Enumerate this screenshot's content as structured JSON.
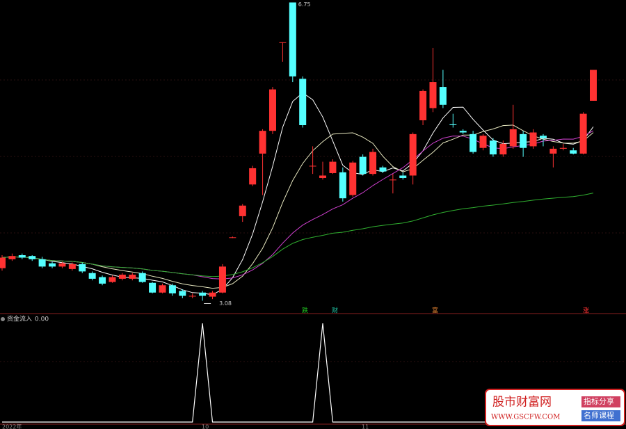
{
  "chart_data": {
    "type": "candlestick",
    "ylim": [
      2.93,
      6.78
    ],
    "open": [
      3.48,
      3.59,
      3.64,
      3.63,
      3.59,
      3.54,
      3.5,
      3.47,
      3.53,
      3.42,
      3.37,
      3.31,
      3.35,
      3.35,
      3.42,
      3.3,
      3.18,
      3.27,
      3.2,
      3.14,
      3.18,
      3.13,
      3.18,
      3.86,
      4.12,
      4.51,
      4.89,
      5.17,
      6.26,
      6.75,
      5.81,
      4.74,
      4.59,
      4.65,
      4.66,
      4.38,
      4.85,
      4.64,
      4.72,
      4.57,
      4.62,
      4.62,
      5.3,
      5.45,
      5.71,
      5.25,
      5.17,
      5.13,
      4.96,
      5.05,
      4.88,
      4.98,
      5.13,
      4.98,
      5.11,
      4.89,
      4.95,
      4.93,
      4.89,
      5.54
    ],
    "high": [
      3.64,
      3.66,
      3.66,
      3.64,
      3.62,
      3.56,
      3.56,
      3.55,
      3.55,
      3.44,
      3.39,
      3.39,
      3.42,
      3.42,
      3.44,
      3.31,
      3.29,
      3.29,
      3.22,
      3.17,
      3.2,
      3.2,
      3.53,
      3.87,
      4.27,
      4.74,
      5.19,
      5.71,
      6.26,
      6.75,
      5.84,
      4.98,
      4.79,
      4.82,
      4.72,
      4.8,
      4.88,
      4.95,
      4.74,
      4.64,
      4.66,
      5.15,
      5.68,
      6.19,
      5.92,
      5.38,
      5.19,
      5.17,
      5.13,
      5.08,
      5.05,
      5.49,
      5.17,
      5.19,
      5.13,
      4.98,
      5.01,
      4.96,
      5.4,
      5.92
    ],
    "low": [
      3.45,
      3.57,
      3.59,
      3.57,
      3.48,
      3.48,
      3.48,
      3.45,
      3.42,
      3.33,
      3.27,
      3.3,
      3.33,
      3.33,
      3.3,
      3.17,
      3.17,
      3.14,
      3.11,
      3.11,
      3.08,
      3.1,
      3.17,
      3.85,
      4.05,
      4.49,
      4.38,
      5.13,
      6.02,
      5.77,
      5.21,
      4.64,
      4.57,
      4.64,
      4.3,
      4.36,
      4.62,
      4.62,
      4.65,
      4.4,
      4.57,
      4.51,
      5.24,
      5.4,
      5.45,
      5.21,
      5.13,
      4.89,
      4.93,
      4.85,
      4.85,
      4.95,
      4.85,
      4.95,
      4.98,
      4.72,
      4.93,
      4.88,
      4.88,
      5.54
    ],
    "close": [
      3.61,
      3.63,
      3.61,
      3.59,
      3.5,
      3.5,
      3.54,
      3.53,
      3.44,
      3.35,
      3.29,
      3.37,
      3.4,
      3.4,
      3.31,
      3.18,
      3.27,
      3.17,
      3.14,
      3.14,
      3.14,
      3.18,
      3.5,
      3.86,
      4.25,
      4.71,
      5.17,
      5.68,
      6.26,
      5.84,
      5.24,
      4.74,
      4.62,
      4.79,
      4.34,
      4.78,
      4.64,
      4.91,
      4.67,
      4.57,
      4.59,
      5.13,
      5.66,
      5.77,
      5.49,
      5.24,
      5.15,
      4.91,
      5.11,
      4.88,
      5.01,
      5.19,
      4.96,
      5.15,
      5.08,
      4.95,
      4.96,
      4.89,
      5.38,
      5.92
    ],
    "up_color": "#ff3232",
    "down_color": "#54ffff",
    "ma_periods": [
      5,
      10,
      20,
      60
    ],
    "ma_colors": [
      "#ffffff",
      "#e8e8c0",
      "#d040d0",
      "#30b030"
    ],
    "indicator": {
      "name": "资金流入",
      "value_label": "0.00",
      "color": "#ffffff",
      "ylim": [
        0,
        1
      ],
      "values": [
        0,
        0,
        0,
        0,
        0,
        0,
        0,
        0,
        0,
        0,
        0,
        0,
        0,
        0,
        0,
        0,
        0,
        0,
        0,
        0,
        1,
        0,
        0,
        0,
        0,
        0,
        0,
        0,
        0,
        0,
        0,
        0,
        1,
        0,
        0,
        0,
        0,
        0,
        0,
        0,
        0,
        0,
        0,
        0,
        0,
        0,
        0,
        0,
        0,
        0,
        0,
        0,
        0,
        0,
        0,
        0,
        0,
        0,
        0,
        0
      ]
    },
    "x_labels": [
      "2022年",
      "10",
      "11"
    ],
    "markers": [
      "跌",
      "财",
      "富",
      "涨"
    ],
    "watermark": {
      "title": "股市财富网",
      "url": "WWW.GSCFW.COM",
      "tag1": "指标分享",
      "tag2": "名师课程"
    }
  }
}
